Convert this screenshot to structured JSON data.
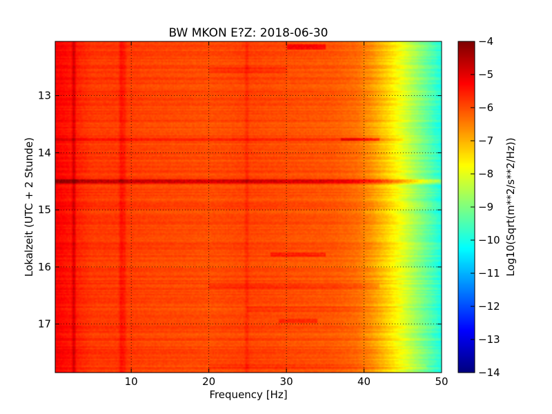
{
  "chart_data": {
    "type": "heatmap",
    "title": "BW MKON E?Z: 2018-06-30",
    "xlabel": "Frequency [Hz]",
    "ylabel": "Lokalzeit (UTC + 2 Stunde)",
    "xlim": [
      0.2,
      50
    ],
    "ylim": [
      12.05,
      17.85
    ],
    "y_inverted": true,
    "grid": "dotted",
    "x_ticks": [
      10,
      20,
      30,
      40,
      50
    ],
    "y_ticks": [
      13,
      14,
      15,
      16,
      17
    ],
    "colorbar": {
      "label": "Log10(Sqrt(m**2/s**2/Hz))",
      "range": [
        -14,
        -4
      ],
      "ticks": [
        -4,
        -5,
        -6,
        -7,
        -8,
        -9,
        -10,
        -11,
        -12,
        -13,
        -14
      ],
      "colormap": "jet"
    },
    "model": {
      "note": "approximate spectral level by frequency; per-row variations listed in anomalies",
      "frequency_profile": [
        {
          "f": 0.2,
          "v": -5.2
        },
        {
          "f": 2.6,
          "v": -5.5
        },
        {
          "f": 5,
          "v": -5.8
        },
        {
          "f": 8.5,
          "v": -5.8
        },
        {
          "f": 12,
          "v": -5.9
        },
        {
          "f": 20,
          "v": -6.0
        },
        {
          "f": 25,
          "v": -5.9
        },
        {
          "f": 30,
          "v": -6.0
        },
        {
          "f": 36,
          "v": -6.1
        },
        {
          "f": 39,
          "v": -6.3
        },
        {
          "f": 41,
          "v": -6.7
        },
        {
          "f": 43,
          "v": -7.3
        },
        {
          "f": 45,
          "v": -8.0
        },
        {
          "f": 47,
          "v": -8.8
        },
        {
          "f": 49,
          "v": -9.6
        },
        {
          "f": 50,
          "v": -10.0
        }
      ],
      "vertical_lines": [
        {
          "f": 2.6,
          "delta": 0.7
        },
        {
          "f": 8.7,
          "delta": 0.45
        },
        {
          "f": 9.1,
          "delta": 0.35
        },
        {
          "f": 24.9,
          "delta": 0.3
        }
      ],
      "anomalies": [
        {
          "t0": 12.1,
          "t1": 12.2,
          "f0": 30,
          "f1": 35,
          "delta": 0.8
        },
        {
          "t0": 12.5,
          "t1": 12.6,
          "f0": 20,
          "f1": 30,
          "delta": 0.3
        },
        {
          "t0": 13.73,
          "t1": 13.8,
          "f0": 0,
          "f1": 45,
          "delta": 0.4
        },
        {
          "t0": 13.73,
          "t1": 13.8,
          "f0": 37,
          "f1": 42,
          "delta": 0.9
        },
        {
          "t0": 14.47,
          "t1": 14.54,
          "f0": 0,
          "f1": 50,
          "delta": 1.3
        },
        {
          "t0": 15.75,
          "t1": 15.82,
          "f0": 28,
          "f1": 35,
          "delta": 0.6
        },
        {
          "t0": 16.3,
          "t1": 16.38,
          "f0": 20,
          "f1": 42,
          "delta": 0.4
        },
        {
          "t0": 16.7,
          "t1": 16.78,
          "f0": 25,
          "f1": 45,
          "delta": 0.3
        },
        {
          "t0": 16.9,
          "t1": 16.98,
          "f0": 29,
          "f1": 34,
          "delta": 0.5
        },
        {
          "t0": 17.7,
          "t1": 17.78,
          "f0": 20,
          "f1": 48,
          "delta": 0.3
        }
      ]
    }
  }
}
